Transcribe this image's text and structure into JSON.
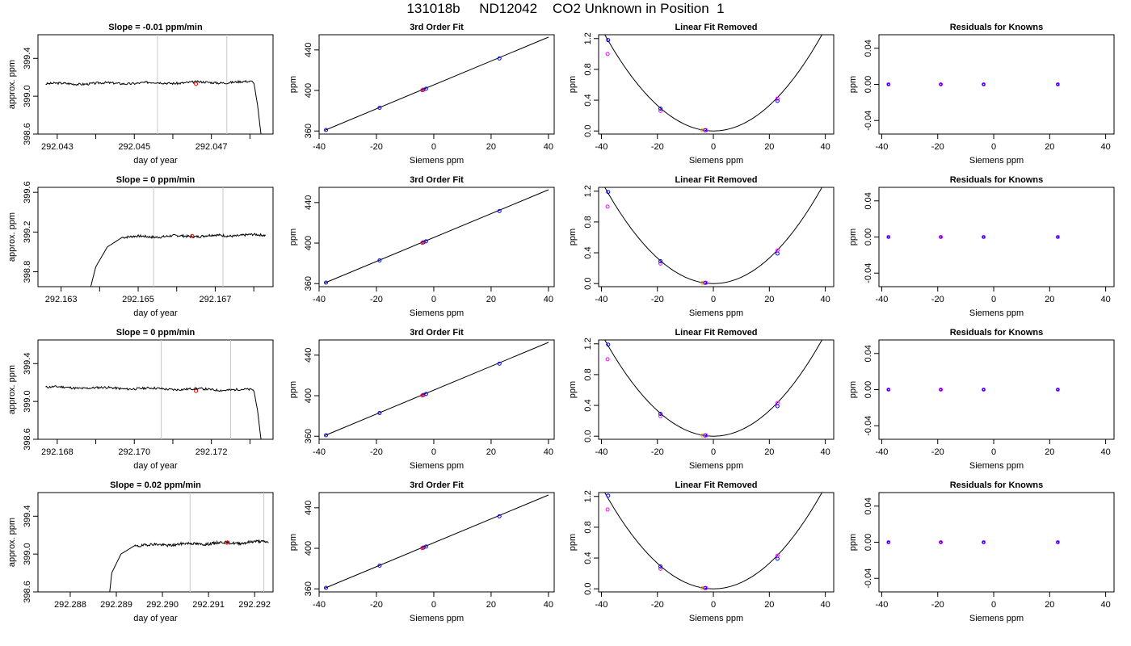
{
  "page_title": "131018b     ND12042    CO2 Unknown in Position  1",
  "chart_data": [
    {
      "type": "line",
      "title": "Slope =  -0.01  ppm/min",
      "xlabel": "day of year",
      "ylabel": "approx. ppm",
      "xlim": [
        292.0425,
        292.0486
      ],
      "ylim": [
        398.6,
        399.65
      ],
      "xticks": [
        292.043,
        292.044,
        292.045,
        292.046,
        292.047,
        292.048
      ],
      "xtick_labels": [
        "292.043",
        "",
        "292.045",
        "",
        "292.047",
        ""
      ],
      "yticks": [
        398.6,
        399.0,
        399.4
      ],
      "ytick_labels": [
        "398.6",
        "399.0",
        "399.4"
      ],
      "vlines": [
        292.0456,
        292.0474
      ],
      "marker": {
        "x": 292.0466,
        "y": 399.13
      },
      "profile": "flat-then-drop",
      "level": 399.13,
      "amp": 0.012,
      "seed": 3,
      "shape_x": [
        292.0427,
        292.0481,
        292.0482,
        292.0483
      ],
      "shape_y": [
        399.13,
        399.15,
        398.9,
        398.55
      ]
    },
    {
      "type": "scatter",
      "title": "3rd Order Fit",
      "xlabel": "Siemens ppm",
      "ylabel": "ppm",
      "xlim": [
        -40,
        42
      ],
      "ylim": [
        357,
        455
      ],
      "xticks": [
        -40,
        -20,
        0,
        20,
        40
      ],
      "yticks": [
        360,
        400,
        440
      ],
      "ytick_labels": [
        "360",
        "400",
        "440"
      ],
      "line": {
        "x": [
          -38,
          40
        ],
        "y": [
          360.7,
          452.6
        ]
      },
      "points": [
        {
          "x": -37.6,
          "y": 361.0
        },
        {
          "x": -18.9,
          "y": 382.9
        },
        {
          "x": -3.6,
          "y": 400.7
        },
        {
          "x": -2.7,
          "y": 401.7
        },
        {
          "x": 22.9,
          "y": 431.6
        }
      ],
      "red": {
        "x": -4.0,
        "y": 400.2
      }
    },
    {
      "type": "scatter",
      "title": "Linear Fit Removed",
      "xlabel": "Siemens ppm",
      "ylabel": "ppm",
      "xlim": [
        -41,
        43
      ],
      "ylim": [
        -0.04,
        1.25
      ],
      "xticks": [
        -40,
        -20,
        0,
        20,
        40
      ],
      "yticks": [
        0.0,
        0.4,
        0.8,
        1.2
      ],
      "ytick_labels": [
        "0.0",
        "0.4",
        "0.8",
        "1.2"
      ],
      "curve": {
        "vertex": 0,
        "a": 0.00083
      },
      "blue": [
        {
          "x": -37.6,
          "y": 1.18
        },
        {
          "x": -18.9,
          "y": 0.29
        },
        {
          "x": -3.0,
          "y": 0.01
        },
        {
          "x": 22.9,
          "y": 0.39
        }
      ],
      "magenta": [
        {
          "x": -37.8,
          "y": 1.0
        },
        {
          "x": -18.9,
          "y": 0.26
        },
        {
          "x": -2.6,
          "y": 0.01
        },
        {
          "x": 22.9,
          "y": 0.42
        }
      ],
      "red": {
        "x": -3.9,
        "y": 0.01
      }
    },
    {
      "type": "scatter",
      "title": "Residuals for Knowns",
      "xlabel": "Siemens ppm",
      "ylabel": "ppm",
      "xlim": [
        -41,
        43
      ],
      "ylim": [
        -0.055,
        0.055
      ],
      "xticks": [
        -40,
        -20,
        0,
        20,
        40
      ],
      "yticks": [
        -0.04,
        0.0,
        0.04
      ],
      "ytick_labels": [
        "-0.04",
        "0.00",
        "0.04"
      ],
      "points": [
        {
          "x": -37.6,
          "y": 0
        },
        {
          "x": -18.9,
          "y": 0
        },
        {
          "x": -3.6,
          "y": 0
        },
        {
          "x": 22.9,
          "y": 0
        }
      ]
    },
    {
      "type": "line",
      "title": "Slope =  0  ppm/min",
      "xlabel": "day of year",
      "ylabel": "approx. ppm",
      "xlim": [
        292.1624,
        292.1685
      ],
      "ylim": [
        398.65,
        399.65
      ],
      "xticks": [
        292.163,
        292.164,
        292.165,
        292.166,
        292.167,
        292.168
      ],
      "xtick_labels": [
        "292.163",
        "",
        "292.165",
        "",
        "292.167",
        ""
      ],
      "yticks": [
        398.8,
        399.2,
        399.6
      ],
      "ytick_labels": [
        "398.8",
        "399.2",
        "399.6"
      ],
      "vlines": [
        292.1654,
        292.1672
      ],
      "marker": {
        "x": 292.1664,
        "y": 399.16
      },
      "profile": "rise",
      "level": 399.16,
      "amp": 0.012,
      "seed": 7,
      "shape_x": [
        292.16375,
        292.1639,
        292.1642,
        292.1646,
        292.1683
      ],
      "shape_y": [
        398.62,
        398.85,
        399.05,
        399.15,
        399.17
      ]
    },
    {
      "type": "scatter",
      "title": "3rd Order Fit",
      "xlabel": "Siemens ppm",
      "ylabel": "ppm",
      "xlim": [
        -40,
        42
      ],
      "ylim": [
        357,
        455
      ],
      "xticks": [
        -40,
        -20,
        0,
        20,
        40
      ],
      "yticks": [
        360,
        400,
        440
      ],
      "ytick_labels": [
        "360",
        "400",
        "440"
      ],
      "line": {
        "x": [
          -38,
          40
        ],
        "y": [
          360.7,
          452.6
        ]
      },
      "points": [
        {
          "x": -37.6,
          "y": 361.0
        },
        {
          "x": -18.9,
          "y": 382.9
        },
        {
          "x": -3.6,
          "y": 400.7
        },
        {
          "x": -2.7,
          "y": 401.7
        },
        {
          "x": 22.9,
          "y": 431.6
        }
      ],
      "red": {
        "x": -4.0,
        "y": 400.2
      }
    },
    {
      "type": "scatter",
      "title": "Linear Fit Removed",
      "xlabel": "Siemens ppm",
      "ylabel": "ppm",
      "xlim": [
        -41,
        43
      ],
      "ylim": [
        -0.04,
        1.25
      ],
      "xticks": [
        -40,
        -20,
        0,
        20,
        40
      ],
      "yticks": [
        0.0,
        0.4,
        0.8,
        1.2
      ],
      "ytick_labels": [
        "0.0",
        "0.4",
        "0.8",
        "1.2"
      ],
      "curve": {
        "vertex": 0,
        "a": 0.00083
      },
      "blue": [
        {
          "x": -37.6,
          "y": 1.19
        },
        {
          "x": -18.9,
          "y": 0.29
        },
        {
          "x": -3.0,
          "y": 0.01
        },
        {
          "x": 22.9,
          "y": 0.39
        }
      ],
      "magenta": [
        {
          "x": -37.8,
          "y": 1.0
        },
        {
          "x": -18.9,
          "y": 0.26
        },
        {
          "x": -2.6,
          "y": 0.01
        },
        {
          "x": 22.9,
          "y": 0.43
        }
      ],
      "red": {
        "x": -3.9,
        "y": 0.01
      }
    },
    {
      "type": "scatter",
      "title": "Residuals for Knowns",
      "xlabel": "Siemens ppm",
      "ylabel": "ppm",
      "xlim": [
        -41,
        43
      ],
      "ylim": [
        -0.055,
        0.055
      ],
      "xticks": [
        -40,
        -20,
        0,
        20,
        40
      ],
      "yticks": [
        -0.04,
        0.0,
        0.04
      ],
      "ytick_labels": [
        "-0.04",
        "0.00",
        "0.04"
      ],
      "points": [
        {
          "x": -37.6,
          "y": 0
        },
        {
          "x": -18.9,
          "y": 0
        },
        {
          "x": -3.6,
          "y": 0
        },
        {
          "x": 22.9,
          "y": 0
        }
      ]
    },
    {
      "type": "line",
      "title": "Slope =  0  ppm/min",
      "xlabel": "day of year",
      "ylabel": "approx. ppm",
      "xlim": [
        292.1675,
        292.1736
      ],
      "ylim": [
        398.6,
        399.65
      ],
      "xticks": [
        292.168,
        292.169,
        292.17,
        292.171,
        292.172,
        292.173
      ],
      "xtick_labels": [
        "292.168",
        "",
        "292.170",
        "",
        "292.172",
        ""
      ],
      "yticks": [
        398.6,
        399.0,
        399.4
      ],
      "ytick_labels": [
        "398.6",
        "399.0",
        "399.4"
      ],
      "vlines": [
        292.1707,
        292.1725
      ],
      "marker": {
        "x": 292.1716,
        "y": 399.11
      },
      "profile": "flat-then-drop",
      "level": 399.12,
      "amp": 0.012,
      "seed": 11,
      "shape_x": [
        292.1677,
        292.1731,
        292.1732,
        292.1733
      ],
      "shape_y": [
        399.15,
        399.12,
        398.9,
        398.55
      ]
    },
    {
      "type": "scatter",
      "title": "3rd Order Fit",
      "xlabel": "Siemens ppm",
      "ylabel": "ppm",
      "xlim": [
        -40,
        42
      ],
      "ylim": [
        357,
        455
      ],
      "xticks": [
        -40,
        -20,
        0,
        20,
        40
      ],
      "yticks": [
        360,
        400,
        440
      ],
      "ytick_labels": [
        "360",
        "400",
        "440"
      ],
      "line": {
        "x": [
          -38,
          40
        ],
        "y": [
          360.7,
          452.6
        ]
      },
      "points": [
        {
          "x": -37.6,
          "y": 361.0
        },
        {
          "x": -18.9,
          "y": 382.9
        },
        {
          "x": -3.6,
          "y": 400.7
        },
        {
          "x": -2.7,
          "y": 401.7
        },
        {
          "x": 22.9,
          "y": 431.6
        }
      ],
      "red": {
        "x": -4.0,
        "y": 400.2
      }
    },
    {
      "type": "scatter",
      "title": "Linear Fit Removed",
      "xlabel": "Siemens ppm",
      "ylabel": "ppm",
      "xlim": [
        -41,
        43
      ],
      "ylim": [
        -0.04,
        1.25
      ],
      "xticks": [
        -40,
        -20,
        0,
        20,
        40
      ],
      "yticks": [
        0.0,
        0.4,
        0.8,
        1.2
      ],
      "ytick_labels": [
        "0.0",
        "0.4",
        "0.8",
        "1.2"
      ],
      "curve": {
        "vertex": 0,
        "a": 0.00083
      },
      "blue": [
        {
          "x": -37.6,
          "y": 1.19
        },
        {
          "x": -18.9,
          "y": 0.29
        },
        {
          "x": -3.0,
          "y": 0.01
        },
        {
          "x": 22.9,
          "y": 0.39
        }
      ],
      "magenta": [
        {
          "x": -37.8,
          "y": 1.0
        },
        {
          "x": -18.9,
          "y": 0.26
        },
        {
          "x": -2.6,
          "y": 0.01
        },
        {
          "x": 22.9,
          "y": 0.43
        }
      ],
      "red": {
        "x": -3.9,
        "y": 0.01
      }
    },
    {
      "type": "scatter",
      "title": "Residuals for Knowns",
      "xlabel": "Siemens ppm",
      "ylabel": "ppm",
      "xlim": [
        -41,
        43
      ],
      "ylim": [
        -0.055,
        0.055
      ],
      "xticks": [
        -40,
        -20,
        0,
        20,
        40
      ],
      "yticks": [
        -0.04,
        0.0,
        0.04
      ],
      "ytick_labels": [
        "-0.04",
        "0.00",
        "0.04"
      ],
      "points": [
        {
          "x": -37.6,
          "y": 0
        },
        {
          "x": -18.9,
          "y": 0
        },
        {
          "x": -3.6,
          "y": 0
        },
        {
          "x": 22.9,
          "y": 0
        }
      ]
    },
    {
      "type": "line",
      "title": "Slope =  0.02  ppm/min",
      "xlabel": "day of year",
      "ylabel": "approx. ppm",
      "xlim": [
        292.2873,
        292.2924
      ],
      "ylim": [
        398.6,
        399.65
      ],
      "xticks": [
        292.288,
        292.289,
        292.29,
        292.291,
        292.292
      ],
      "xtick_labels": [
        "292.288",
        "292.289",
        "292.290",
        "292.291",
        "292.292"
      ],
      "yticks": [
        398.6,
        399.0,
        399.4
      ],
      "ytick_labels": [
        "398.6",
        "399.0",
        "399.4"
      ],
      "vlines": [
        292.2906,
        292.2922
      ],
      "marker": {
        "x": 292.2914,
        "y": 399.12
      },
      "profile": "rise",
      "level": 399.11,
      "amp": 0.014,
      "seed": 19,
      "shape_x": [
        292.28885,
        292.2889,
        292.2891,
        292.2894,
        292.2923
      ],
      "shape_y": [
        398.57,
        398.8,
        399.0,
        399.09,
        399.13
      ]
    },
    {
      "type": "scatter",
      "title": "3rd Order Fit",
      "xlabel": "Siemens ppm",
      "ylabel": "ppm",
      "xlim": [
        -40,
        42
      ],
      "ylim": [
        357,
        455
      ],
      "xticks": [
        -40,
        -20,
        0,
        20,
        40
      ],
      "yticks": [
        360,
        400,
        440
      ],
      "ytick_labels": [
        "360",
        "400",
        "440"
      ],
      "line": {
        "x": [
          -38,
          40
        ],
        "y": [
          360.7,
          452.6
        ]
      },
      "points": [
        {
          "x": -37.6,
          "y": 361.0
        },
        {
          "x": -18.9,
          "y": 382.9
        },
        {
          "x": -3.6,
          "y": 400.7
        },
        {
          "x": -2.7,
          "y": 401.7
        },
        {
          "x": 22.9,
          "y": 431.6
        }
      ],
      "red": {
        "x": -4.0,
        "y": 400.2
      }
    },
    {
      "type": "scatter",
      "title": "Linear Fit Removed",
      "xlabel": "Siemens ppm",
      "ylabel": "ppm",
      "xlim": [
        -41,
        43
      ],
      "ylim": [
        -0.04,
        1.25
      ],
      "xticks": [
        -40,
        -20,
        0,
        20,
        40
      ],
      "yticks": [
        0.0,
        0.4,
        0.8,
        1.2
      ],
      "ytick_labels": [
        "0.0",
        "0.4",
        "0.8",
        "1.2"
      ],
      "curve": {
        "vertex": 0,
        "a": 0.00083
      },
      "blue": [
        {
          "x": -37.6,
          "y": 1.21
        },
        {
          "x": -18.9,
          "y": 0.29
        },
        {
          "x": -3.0,
          "y": 0.01
        },
        {
          "x": 22.9,
          "y": 0.39
        }
      ],
      "magenta": [
        {
          "x": -37.8,
          "y": 1.03
        },
        {
          "x": -18.9,
          "y": 0.26
        },
        {
          "x": -2.6,
          "y": 0.01
        },
        {
          "x": 22.9,
          "y": 0.43
        }
      ],
      "red": {
        "x": -3.9,
        "y": 0.01
      }
    },
    {
      "type": "scatter",
      "title": "Residuals for Knowns",
      "xlabel": "Siemens ppm",
      "ylabel": "ppm",
      "xlim": [
        -41,
        43
      ],
      "ylim": [
        -0.055,
        0.055
      ],
      "xticks": [
        -40,
        -20,
        0,
        20,
        40
      ],
      "yticks": [
        -0.04,
        0.0,
        0.04
      ],
      "ytick_labels": [
        "-0.04",
        "0.00",
        "0.04"
      ],
      "points": [
        {
          "x": -37.6,
          "y": 0
        },
        {
          "x": -18.9,
          "y": 0
        },
        {
          "x": -3.6,
          "y": 0
        },
        {
          "x": 22.9,
          "y": 0
        }
      ]
    }
  ],
  "colors": {
    "line": "#000000",
    "vline": "#c8c8c8",
    "red": "#ff0000",
    "blue": "#0000ff",
    "magenta": "#ff00ff",
    "orange": "#ffa500"
  }
}
